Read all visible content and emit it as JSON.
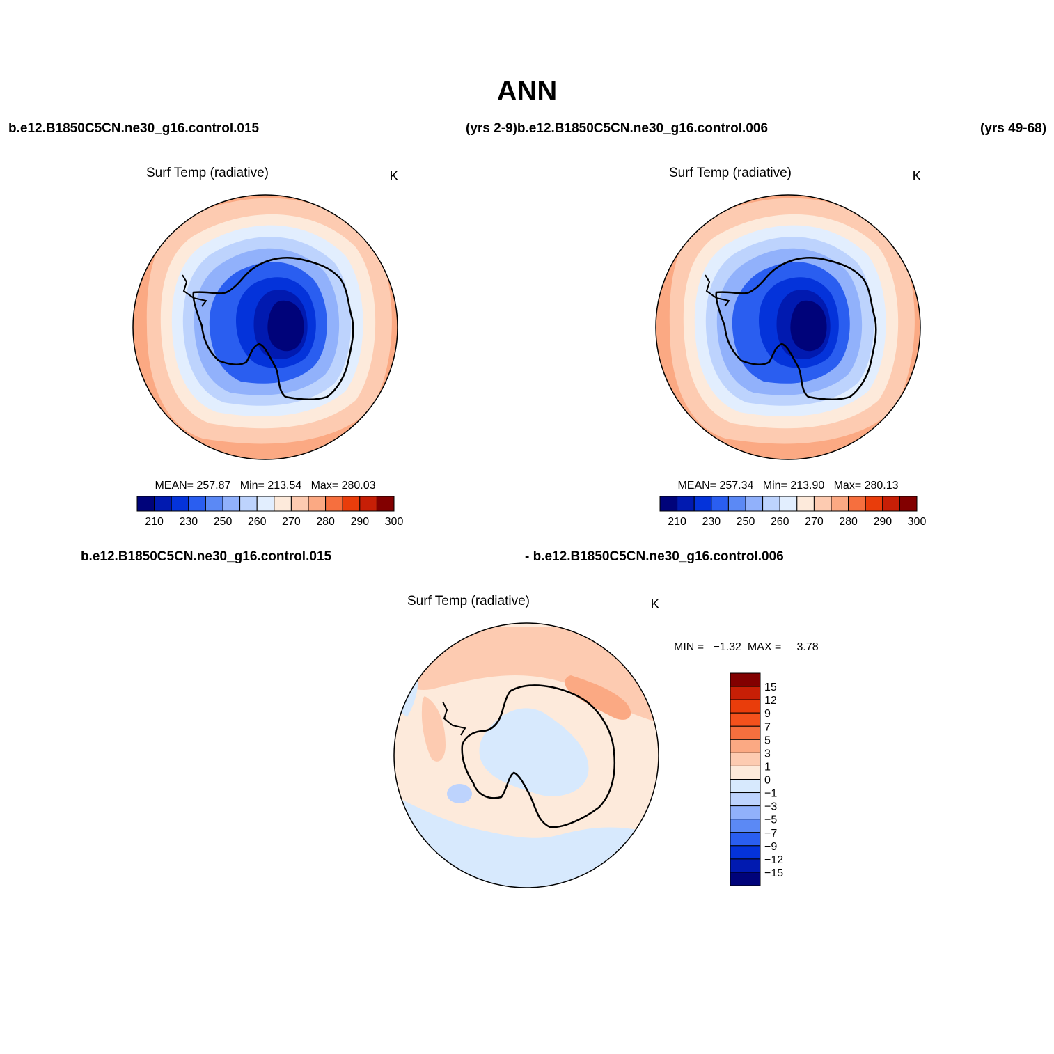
{
  "main_title": "ANN",
  "header": {
    "case1": "b.e12.B1850C5CN.ne30_g16.control.015",
    "case1_years": "(yrs 2-9)",
    "case2": "b.e12.B1850C5CN.ne30_g16.control.006",
    "case2_years": "(yrs 49-68)"
  },
  "panels": {
    "top_left": {
      "title": "Surf Temp (radiative)",
      "units": "K",
      "stats": "MEAN= 257.87   Min= 213.54   Max= 280.03"
    },
    "top_right": {
      "title": "Surf Temp (radiative)",
      "units": "K",
      "stats": "MEAN= 257.34   Min= 213.90   Max= 280.13"
    },
    "diff": {
      "label_case1": "b.e12.B1850C5CN.ne30_g16.control.015",
      "label_case2": "- b.e12.B1850C5CN.ne30_g16.control.006",
      "title": "Surf Temp (radiative)",
      "units": "K",
      "stats": "MIN =   −1.32  MAX =     3.78"
    }
  },
  "temp_colorbar": {
    "colors": [
      "#00037a",
      "#011ab0",
      "#0433da",
      "#2a5ef0",
      "#5b89f5",
      "#91b1fb",
      "#bdd3fd",
      "#e2eefe",
      "#fdeadb",
      "#fdcbb1",
      "#fba983",
      "#f66f3e",
      "#e93d0b",
      "#c71f06",
      "#820000"
    ],
    "labels": [
      "210",
      "230",
      "250",
      "260",
      "270",
      "280",
      "290",
      "300"
    ]
  },
  "diff_colorbar": {
    "colors_top_to_bottom": [
      "#820000",
      "#c71f06",
      "#e93d0b",
      "#f4511c",
      "#f66f3e",
      "#fba983",
      "#fdcbb1",
      "#fdeadb",
      "#d7e9fd",
      "#bdd3fd",
      "#91b1fb",
      "#5b89f5",
      "#2a5ef0",
      "#0433da",
      "#011ab0",
      "#00037a"
    ],
    "labels_top_to_bottom": [
      "15",
      "12",
      "9",
      "7",
      "5",
      "3",
      "1",
      "0",
      "−1",
      "−3",
      "−5",
      "−7",
      "−9",
      "−12",
      "−15"
    ]
  }
}
